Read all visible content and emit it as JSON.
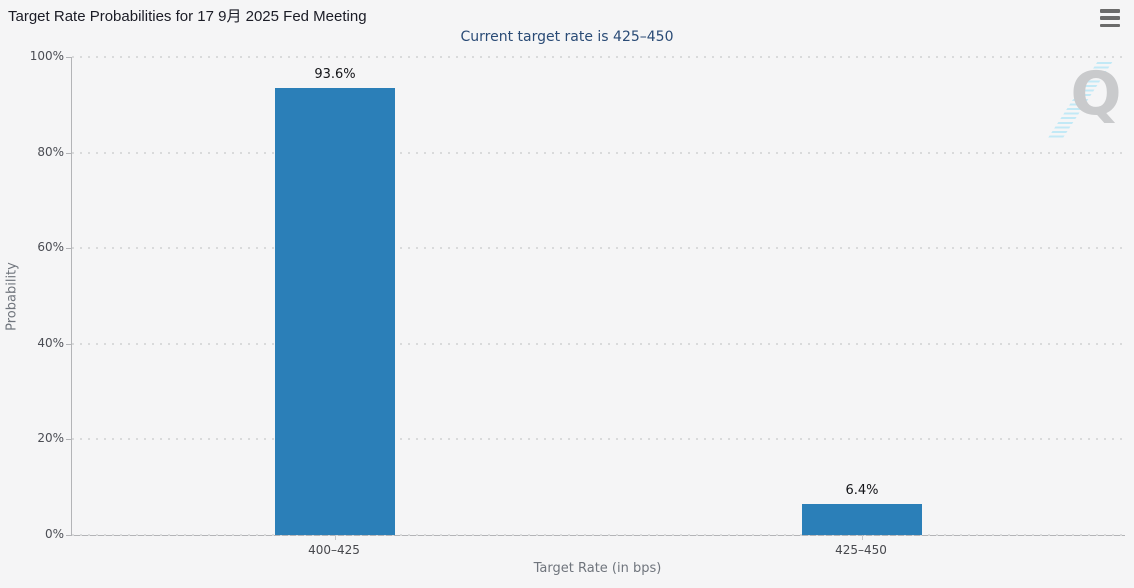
{
  "header": {
    "title": "Target Rate Probabilities for 17 9月 2025 Fed Meeting",
    "menu_icon": "hamburger-icon"
  },
  "watermark": {
    "letter": "Q",
    "stripe_color": "#c2e9f6",
    "letter_color": "#c9cacc"
  },
  "chart_data": {
    "type": "bar",
    "title": "Target Rate Probabilities for 17 9月 2025 Fed Meeting",
    "subtitle": "Current target rate is 425–450",
    "categories": [
      "400–425",
      "425–450"
    ],
    "values": [
      93.6,
      6.4
    ],
    "value_labels": [
      "93.6%",
      "6.4%"
    ],
    "xlabel": "Target Rate (in bps)",
    "ylabel": "Probability",
    "ylim": [
      0,
      100
    ],
    "y_tick_values": [
      0,
      20,
      40,
      60,
      80,
      100
    ],
    "y_tick_labels": [
      "0%",
      "20%",
      "40%",
      "60%",
      "80%",
      "100%"
    ],
    "grid": "dotted-horizontal",
    "legend": "none",
    "bar_color": "#2b7fb8",
    "background_color": "#f5f5f6"
  }
}
